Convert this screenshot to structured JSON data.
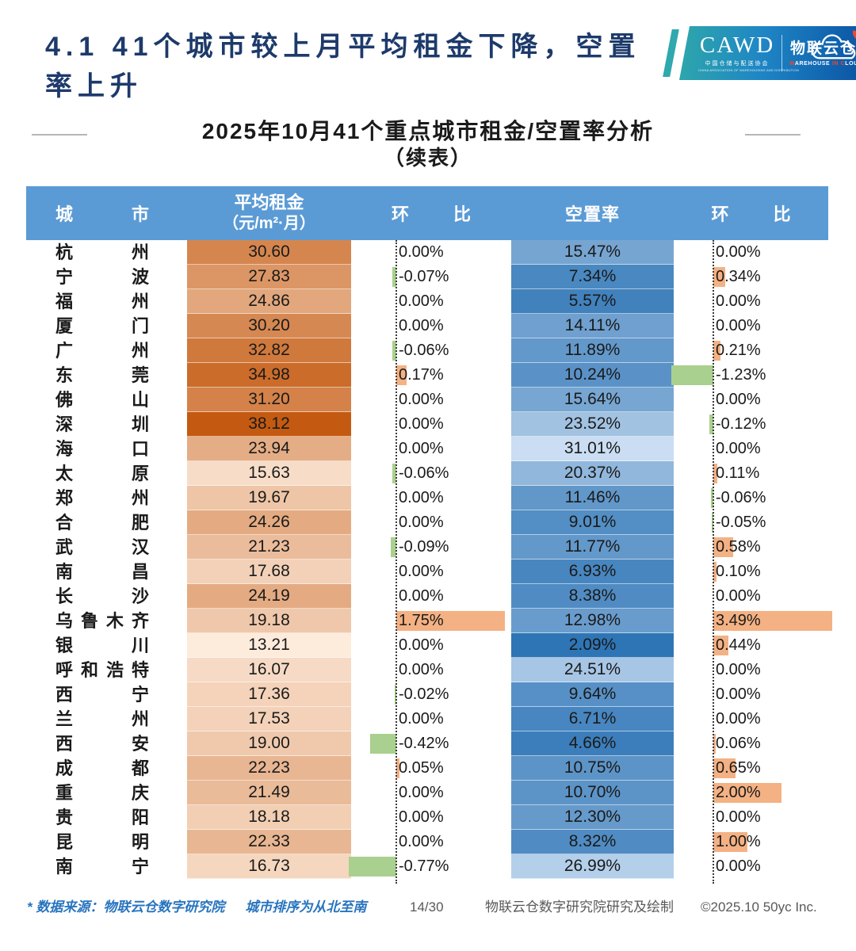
{
  "title": {
    "lines": [
      "4.1 41个城市较上月平均租金下降，空置",
      "率上升"
    ],
    "color": "#1D3A6B"
  },
  "logo": {
    "cawd": "CAWD",
    "cawd_sub_cn": "中国仓储与配送协会",
    "cawd_sub_en": "CHINA ASSOCIATION OF WAREHOUSING AND DISTRIBUTION",
    "brand_cn": "物联云仓",
    "brand_en_segments": [
      {
        "text": "W",
        "accent": true
      },
      {
        "text": "AREHOUSE",
        "accent": false
      },
      {
        "text": " ",
        "accent": false
      },
      {
        "text": "IN",
        "accent": true
      },
      {
        "text": " ",
        "accent": false
      },
      {
        "text": "C",
        "accent": true
      },
      {
        "text": "LOUD",
        "accent": false
      }
    ],
    "accent_color": "#F0472E"
  },
  "subtitle": {
    "line1": "2025年10月41个重点城市租金/空置率分析",
    "line2": "（续表）"
  },
  "table": {
    "header": {
      "city": "城市",
      "rent": "平均租金",
      "rent_unit": "（元/m²·月）",
      "mom1": "环比",
      "vacancy": "空置率",
      "mom2": "环比",
      "bg": "#5B9BD5"
    },
    "styles": {
      "rent_color_light": "#FDEBDC",
      "rent_color_dark": "#C45A11",
      "vac_color_low": "#2E75B6",
      "vac_color_high": "#CADDF2",
      "bar_positive": "#F4B183",
      "bar_negative": "#A9D08E"
    }
  },
  "footer": {
    "source_note": "* 数据来源：物联云仓数字研究院",
    "order_note": "城市排序为从北至南",
    "page": "14/30",
    "credit": "物联云仓数字研究院研究及绘制",
    "copyright": "©2025.10 50yc Inc.",
    "note_color": "#2874BE",
    "muted_color": "#595959"
  },
  "chart_data": {
    "type": "table",
    "title": "2025年10月41个重点城市租金/空置率分析（续表）",
    "columns": [
      "城市",
      "平均租金（元/m²·月）",
      "环比",
      "空置率",
      "环比"
    ],
    "rows": [
      [
        "杭州",
        30.6,
        0.0,
        15.47,
        0.0
      ],
      [
        "宁波",
        27.83,
        -0.07,
        7.34,
        0.34
      ],
      [
        "福州",
        24.86,
        0.0,
        5.57,
        0.0
      ],
      [
        "厦门",
        30.2,
        0.0,
        14.11,
        0.0
      ],
      [
        "广州",
        32.82,
        -0.06,
        11.89,
        0.21
      ],
      [
        "东莞",
        34.98,
        0.17,
        10.24,
        -1.23
      ],
      [
        "佛山",
        31.2,
        0.0,
        15.64,
        0.0
      ],
      [
        "深圳",
        38.12,
        0.0,
        23.52,
        -0.12
      ],
      [
        "海口",
        23.94,
        0.0,
        31.01,
        0.0
      ],
      [
        "太原",
        15.63,
        -0.06,
        20.37,
        0.11
      ],
      [
        "郑州",
        19.67,
        0.0,
        11.46,
        -0.06
      ],
      [
        "合肥",
        24.26,
        0.0,
        9.01,
        -0.05
      ],
      [
        "武汉",
        21.23,
        -0.09,
        11.77,
        0.58
      ],
      [
        "南昌",
        17.68,
        0.0,
        6.93,
        0.1
      ],
      [
        "长沙",
        24.19,
        0.0,
        8.38,
        0.0
      ],
      [
        "乌鲁木齐",
        19.18,
        1.75,
        12.98,
        3.49
      ],
      [
        "银川",
        13.21,
        0.0,
        2.09,
        0.44
      ],
      [
        "呼和浩特",
        16.07,
        0.0,
        24.51,
        0.0
      ],
      [
        "西宁",
        17.36,
        -0.02,
        9.64,
        0.0
      ],
      [
        "兰州",
        17.53,
        0.0,
        6.71,
        0.0
      ],
      [
        "西安",
        19.0,
        -0.42,
        4.66,
        0.06
      ],
      [
        "成都",
        22.23,
        0.05,
        10.75,
        0.65
      ],
      [
        "重庆",
        21.49,
        0.0,
        10.7,
        2.0
      ],
      [
        "贵阳",
        18.18,
        0.0,
        12.3,
        0.0
      ],
      [
        "昆明",
        22.33,
        0.0,
        8.32,
        1.0
      ],
      [
        "南宁",
        16.73,
        -0.77,
        26.99,
        0.0
      ]
    ]
  }
}
